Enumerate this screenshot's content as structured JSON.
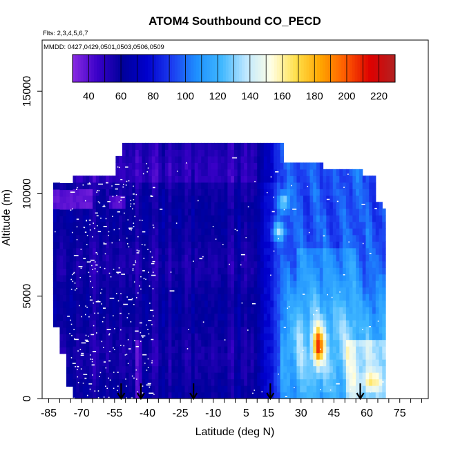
{
  "chart_data": {
    "type": "heatmap",
    "title": "ATOM4 Southbound CO_PECD",
    "subtitle_flights": "Flts: 2,3,4,5,6,7",
    "subtitle_dates": "MMDD: 0427,0429,0501,0503,0506,0509",
    "xlabel": "Latitude (deg N)",
    "ylabel": "Altitude (m)",
    "xlim": [
      -88,
      88
    ],
    "ylim": [
      0,
      17500
    ],
    "x_ticks": [
      "-85",
      "-70",
      "-55",
      "-40",
      "-25",
      "-10",
      "5",
      "15",
      "30",
      "45",
      "60",
      "75"
    ],
    "x_tick_values": [
      -85,
      -70,
      -55,
      -40,
      -25,
      -10,
      5,
      15,
      30,
      45,
      60,
      75
    ],
    "y_ticks": [
      "0",
      "5000",
      "10000",
      "15000"
    ],
    "y_tick_values": [
      0,
      5000,
      10000,
      15000
    ],
    "colorbar": {
      "min": 30,
      "max": 230,
      "tick_labels": [
        "40",
        "60",
        "80",
        "100",
        "120",
        "140",
        "160",
        "180",
        "200",
        "220"
      ],
      "tick_values": [
        40,
        60,
        80,
        100,
        120,
        140,
        160,
        180,
        200,
        220
      ],
      "colors": [
        "#8a2be2",
        "#3a00c8",
        "#00009a",
        "#0000cd",
        "#1c3cf0",
        "#1e90ff",
        "#3fb7ff",
        "#bfe8ff",
        "#ffffe6",
        "#ffe04a",
        "#ffa500",
        "#ff5a00",
        "#dd0000",
        "#b22222"
      ]
    },
    "sounding_latitudes": [
      -52,
      -43,
      -19,
      16,
      57
    ],
    "series_note": "CO_PECD curtain by latitude (x) and altitude (y); low values (~50-70) over southern latitudes, elevated values (~120-190) north of 15N with maxima near 37-40N at 2-3 km and 20N at 9-10 km"
  }
}
